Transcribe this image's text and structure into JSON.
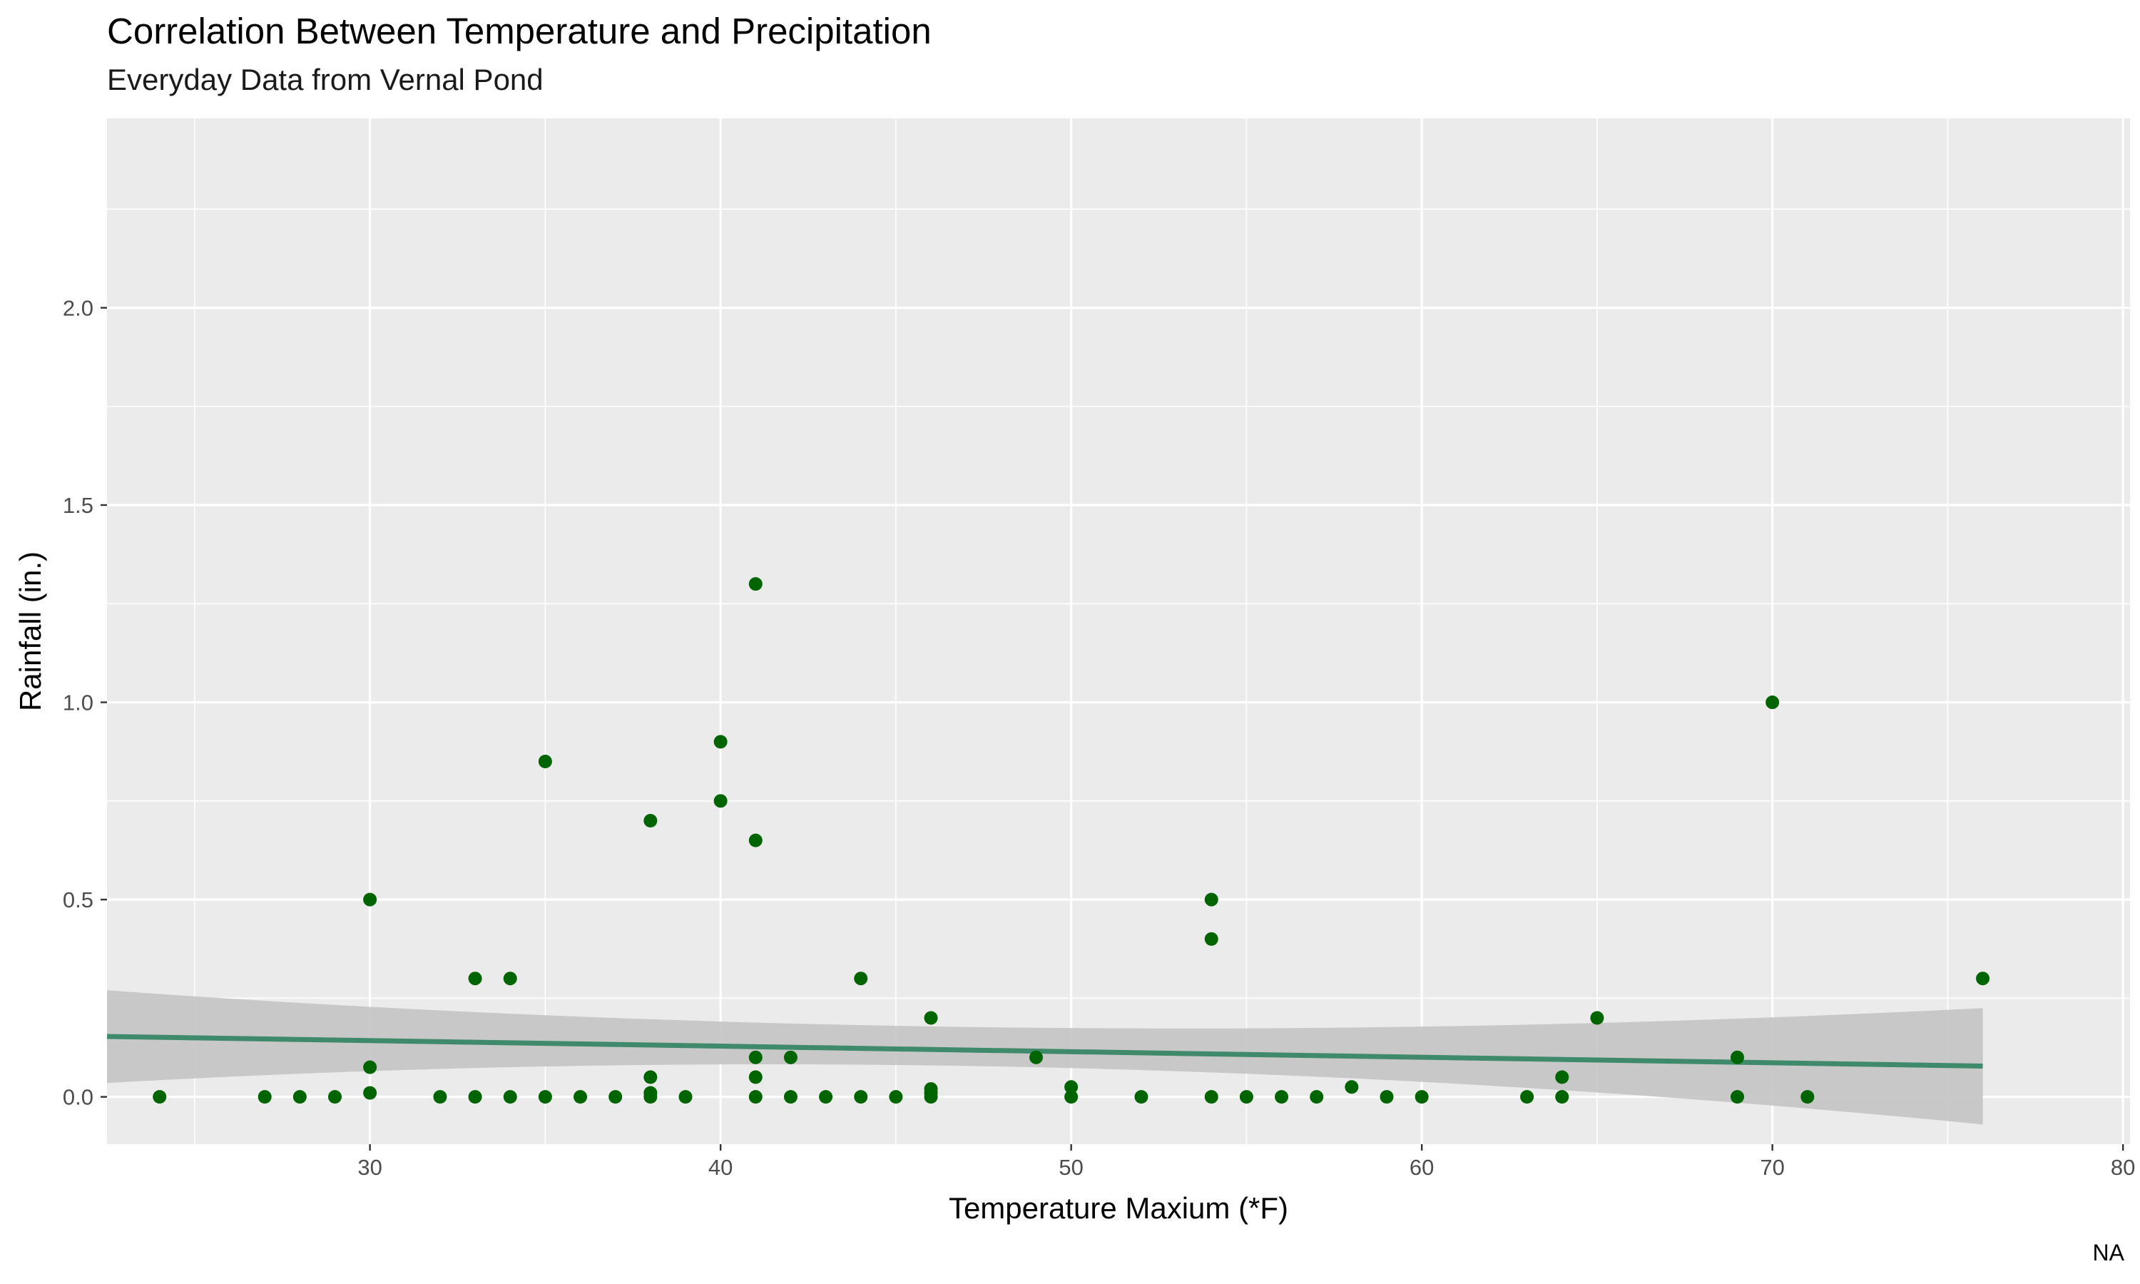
{
  "chart_data": {
    "type": "scatter",
    "title": "Correlation Between Temperature and Precipitation",
    "subtitle": "Everyday Data from Vernal Pond",
    "caption": "NA",
    "xlabel": "Temperature Maxium (*F)",
    "ylabel": "Rainfall (in.)",
    "xlim": [
      22.5,
      80.2
    ],
    "ylim": [
      -0.12,
      2.48
    ],
    "x_ticks": [
      30,
      40,
      50,
      60,
      70,
      80
    ],
    "y_ticks": [
      0.0,
      0.5,
      1.0,
      1.5,
      2.0
    ],
    "y_tick_labels": [
      "0.0",
      "0.5",
      "1.0",
      "1.5",
      "2.0"
    ],
    "grid": true,
    "legend": "none",
    "colors": {
      "panel": "#ebebeb",
      "grid": "#ffffff",
      "point": "#006400",
      "trend_line": "#3f8a6a",
      "confidence_band": "#c4c4c4"
    },
    "points": [
      {
        "x": 24,
        "y": 0.0
      },
      {
        "x": 27,
        "y": 0.0
      },
      {
        "x": 28,
        "y": 0.0
      },
      {
        "x": 29,
        "y": 0.0
      },
      {
        "x": 30,
        "y": 0.5
      },
      {
        "x": 30,
        "y": 0.075
      },
      {
        "x": 30,
        "y": 0.01
      },
      {
        "x": 32,
        "y": 0.0
      },
      {
        "x": 33,
        "y": 0.3
      },
      {
        "x": 33,
        "y": 0.0
      },
      {
        "x": 34,
        "y": 0.3
      },
      {
        "x": 34,
        "y": 0.0
      },
      {
        "x": 35,
        "y": 0.85
      },
      {
        "x": 35,
        "y": 0.0
      },
      {
        "x": 36,
        "y": 0.0
      },
      {
        "x": 37,
        "y": 0.0
      },
      {
        "x": 38,
        "y": 0.7
      },
      {
        "x": 38,
        "y": 0.05
      },
      {
        "x": 38,
        "y": 0.01
      },
      {
        "x": 38,
        "y": 0.0
      },
      {
        "x": 39,
        "y": 0.0
      },
      {
        "x": 40,
        "y": 0.9
      },
      {
        "x": 40,
        "y": 0.75
      },
      {
        "x": 41,
        "y": 1.3
      },
      {
        "x": 41,
        "y": 0.65
      },
      {
        "x": 41,
        "y": 0.1
      },
      {
        "x": 41,
        "y": 0.05
      },
      {
        "x": 41,
        "y": 0.0
      },
      {
        "x": 42,
        "y": 0.1
      },
      {
        "x": 42,
        "y": 0.0
      },
      {
        "x": 43,
        "y": 0.0
      },
      {
        "x": 44,
        "y": 0.3
      },
      {
        "x": 44,
        "y": 0.0
      },
      {
        "x": 45,
        "y": 0.0
      },
      {
        "x": 46,
        "y": 0.2
      },
      {
        "x": 46,
        "y": 0.02
      },
      {
        "x": 46,
        "y": 0.01
      },
      {
        "x": 46,
        "y": 0.0
      },
      {
        "x": 49,
        "y": 0.1
      },
      {
        "x": 50,
        "y": 0.025
      },
      {
        "x": 50,
        "y": 0.0
      },
      {
        "x": 52,
        "y": 0.0
      },
      {
        "x": 54,
        "y": 0.5
      },
      {
        "x": 54,
        "y": 0.4
      },
      {
        "x": 54,
        "y": 0.0
      },
      {
        "x": 55,
        "y": 0.0
      },
      {
        "x": 56,
        "y": 0.0
      },
      {
        "x": 57,
        "y": 0.0
      },
      {
        "x": 58,
        "y": 0.025
      },
      {
        "x": 59,
        "y": 0.0
      },
      {
        "x": 60,
        "y": 0.0
      },
      {
        "x": 63,
        "y": 0.0
      },
      {
        "x": 64,
        "y": 0.05
      },
      {
        "x": 64,
        "y": 0.0
      },
      {
        "x": 65,
        "y": 0.2
      },
      {
        "x": 69,
        "y": 0.1
      },
      {
        "x": 69,
        "y": 0.0
      },
      {
        "x": 70,
        "y": 1.0
      },
      {
        "x": 71,
        "y": 0.0
      },
      {
        "x": 76,
        "y": 0.3
      }
    ],
    "trend": {
      "method": "linear",
      "x_range": [
        22.5,
        76
      ],
      "y_at_range": [
        0.153,
        0.078
      ],
      "band_lower": [
        0.035,
        -0.07
      ],
      "band_upper": [
        0.27,
        0.225
      ],
      "band_mid": {
        "x": 49,
        "lower": 0.075,
        "upper": 0.175
      }
    }
  }
}
